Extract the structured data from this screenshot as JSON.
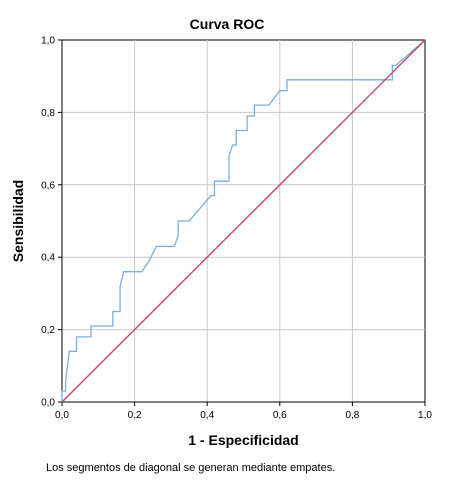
{
  "chart_data": {
    "type": "line",
    "title": "Curva ROC",
    "xlabel": "1 - Especificidad",
    "ylabel": "Sensibilidad",
    "xlim": [
      0,
      1
    ],
    "ylim": [
      0,
      1
    ],
    "grid": true,
    "x_ticks": [
      0,
      0.2,
      0.4,
      0.6,
      0.8,
      1.0
    ],
    "y_ticks": [
      0,
      0.2,
      0.4,
      0.6,
      0.8,
      1.0
    ],
    "x_tick_labels": [
      "0,0",
      "0,2",
      "0,4",
      "0,6",
      "0,8",
      "1,0"
    ],
    "y_tick_labels": [
      "0,0",
      "0,2",
      "0,4",
      "0,6",
      "0,8",
      "1,0"
    ],
    "series": [
      {
        "color": "#7aaee0",
        "x": [
          0.0,
          0.0,
          0.01,
          0.01,
          0.02,
          0.02,
          0.04,
          0.04,
          0.08,
          0.08,
          0.14,
          0.14,
          0.16,
          0.16,
          0.17,
          0.17,
          0.22,
          0.24,
          0.26,
          0.31,
          0.32,
          0.32,
          0.34,
          0.35,
          0.41,
          0.42,
          0.42,
          0.45,
          0.46,
          0.46,
          0.47,
          0.48,
          0.48,
          0.5,
          0.51,
          0.51,
          0.53,
          0.53,
          0.57,
          0.6,
          0.6,
          0.62,
          0.62,
          0.9,
          0.91,
          0.91,
          0.92,
          1.0
        ],
        "y": [
          0.0,
          0.03,
          0.03,
          0.06,
          0.14,
          0.14,
          0.14,
          0.18,
          0.18,
          0.21,
          0.21,
          0.25,
          0.25,
          0.32,
          0.36,
          0.36,
          0.36,
          0.39,
          0.43,
          0.43,
          0.46,
          0.5,
          0.5,
          0.5,
          0.57,
          0.57,
          0.61,
          0.61,
          0.61,
          0.68,
          0.71,
          0.71,
          0.75,
          0.75,
          0.75,
          0.79,
          0.79,
          0.82,
          0.82,
          0.86,
          0.86,
          0.86,
          0.89,
          0.89,
          0.89,
          0.93,
          0.93,
          1.0
        ]
      },
      {
        "color": "#cc3a5c",
        "x": [
          0,
          1
        ],
        "y": [
          0,
          1
        ]
      }
    ],
    "footnote": "Los segmentos de diagonal se generan mediante empates."
  }
}
